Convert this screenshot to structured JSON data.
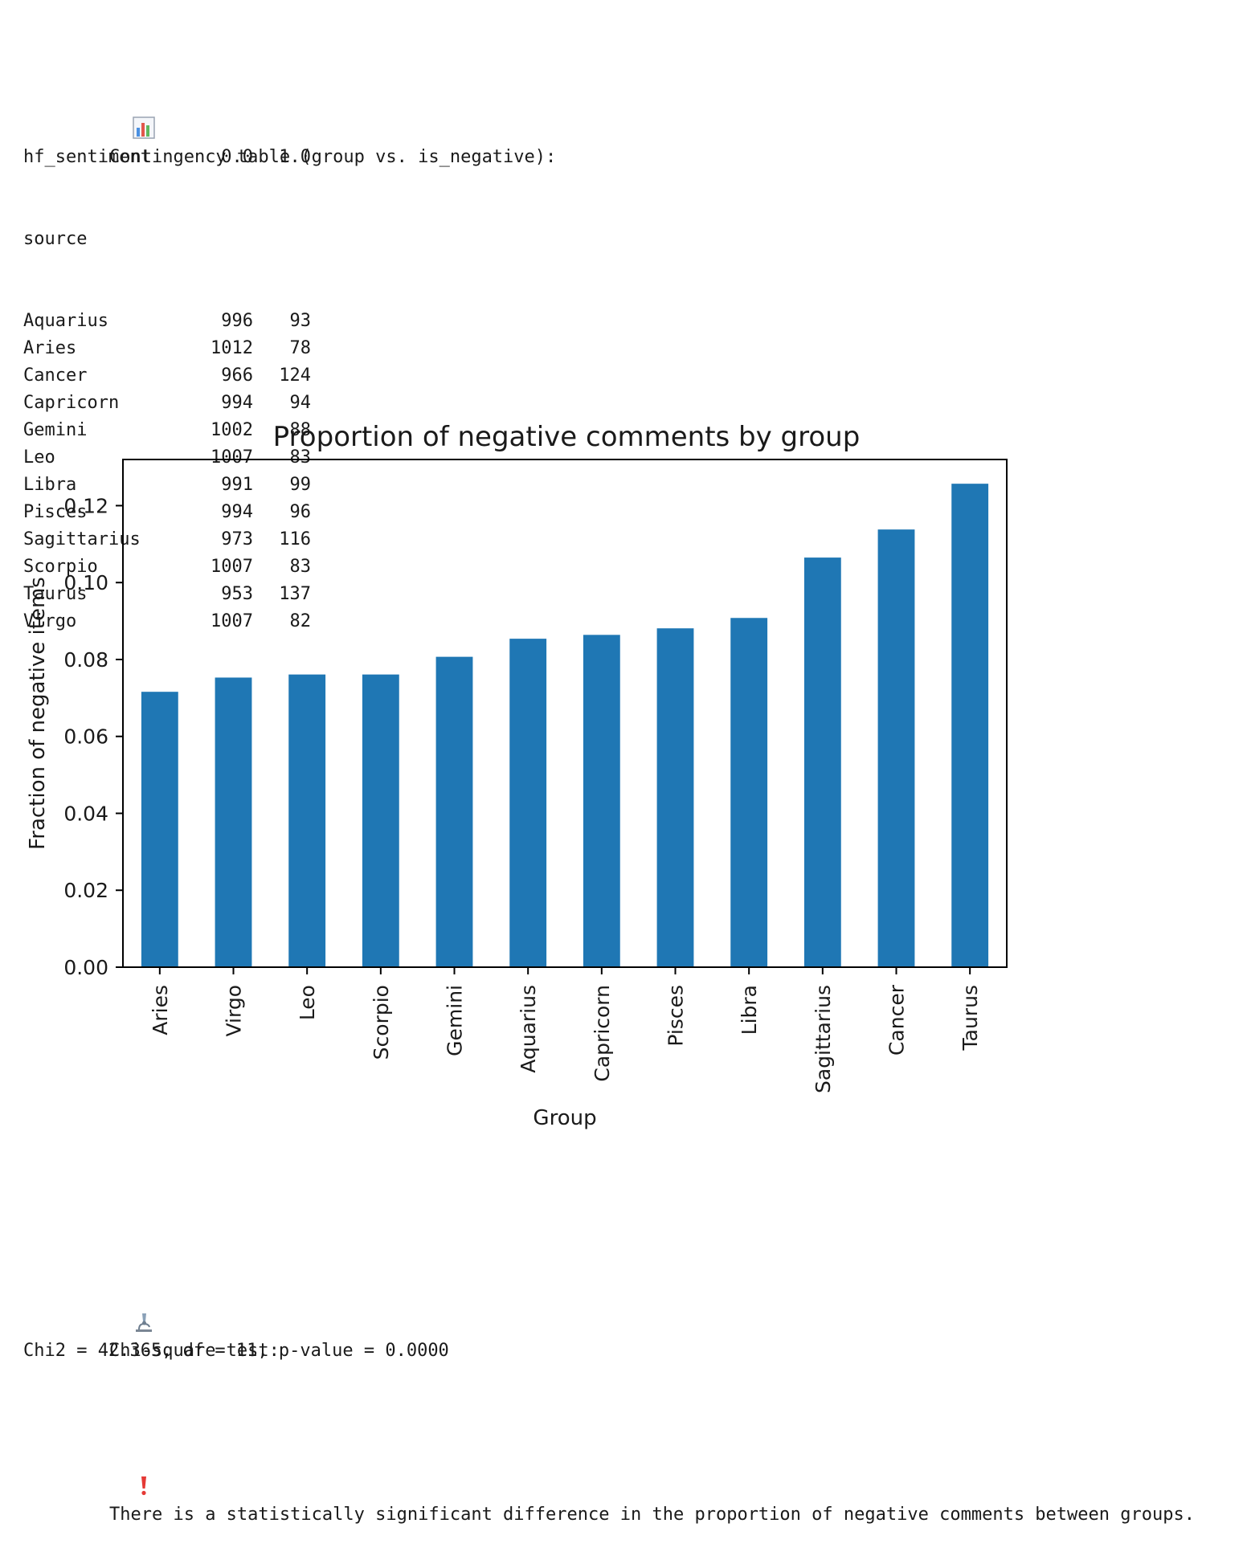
{
  "contingency": {
    "icon": "bar-chart-icon",
    "heading": "Contingency table (group vs. is_negative):",
    "index_label": "hf_sentiment",
    "columns": [
      "0.0",
      "1.0"
    ],
    "row_index_name": "source",
    "rows": [
      {
        "name": "Aquarius",
        "v0": "996",
        "v1": "93"
      },
      {
        "name": "Aries",
        "v0": "1012",
        "v1": "78"
      },
      {
        "name": "Cancer",
        "v0": "966",
        "v1": "124"
      },
      {
        "name": "Capricorn",
        "v0": "994",
        "v1": "94"
      },
      {
        "name": "Gemini",
        "v0": "1002",
        "v1": "88"
      },
      {
        "name": "Leo",
        "v0": "1007",
        "v1": "83"
      },
      {
        "name": "Libra",
        "v0": "991",
        "v1": "99"
      },
      {
        "name": "Pisces",
        "v0": "994",
        "v1": "96"
      },
      {
        "name": "Sagittarius",
        "v0": "973",
        "v1": "116"
      },
      {
        "name": "Scorpio",
        "v0": "1007",
        "v1": "83"
      },
      {
        "name": "Taurus",
        "v0": "953",
        "v1": "137"
      },
      {
        "name": "Virgo",
        "v0": "1007",
        "v1": "82"
      }
    ]
  },
  "chart_data": {
    "type": "bar",
    "title": "Proportion of negative comments by group",
    "xlabel": "Group",
    "ylabel": "Fraction of negative items",
    "categories": [
      "Aries",
      "Virgo",
      "Leo",
      "Scorpio",
      "Gemini",
      "Aquarius",
      "Capricorn",
      "Pisces",
      "Libra",
      "Sagittarius",
      "Cancer",
      "Taurus"
    ],
    "values": [
      0.0716,
      0.0753,
      0.0761,
      0.0761,
      0.0807,
      0.0854,
      0.0864,
      0.0881,
      0.0908,
      0.1065,
      0.1138,
      0.1257
    ],
    "ylim": [
      0,
      0.132
    ],
    "yticks": [
      "0.00",
      "0.02",
      "0.04",
      "0.06",
      "0.08",
      "0.10",
      "0.12"
    ],
    "bar_color": "#1f77b4",
    "grid": false,
    "legend": false
  },
  "chi_square": {
    "icon": "microscope-icon",
    "heading": "Chi-square test:",
    "result_line": "Chi2 = 42.365, df = 11, p-value = 0.0000",
    "conclusion_icon": "exclamation-icon",
    "conclusion": "There is a statistically significant difference in the proportion of negative comments between groups."
  }
}
